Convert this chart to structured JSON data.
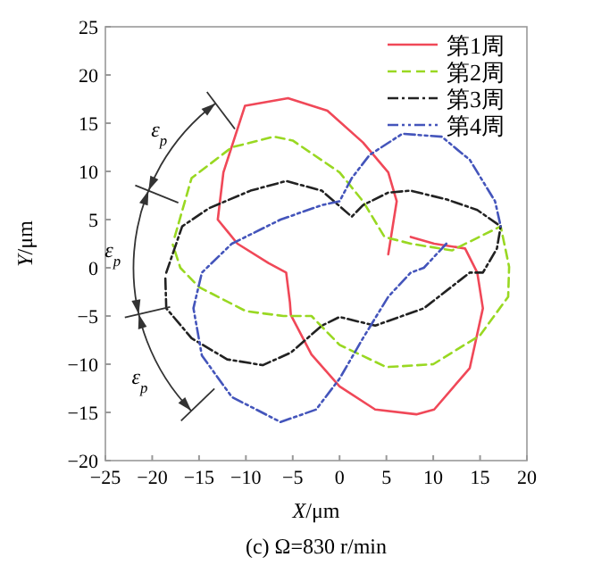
{
  "chart_data": {
    "type": "line",
    "title": "(c) Ω=830 r/min",
    "xlabel": "X/μm",
    "ylabel": "Y/μm",
    "xlim": [
      -25,
      20
    ],
    "ylim": [
      -20,
      25
    ],
    "xticks": [
      -25,
      -20,
      -15,
      -10,
      -5,
      0,
      5,
      10,
      15,
      20
    ],
    "yticks": [
      -20,
      -15,
      -10,
      -5,
      0,
      5,
      10,
      15,
      20,
      25
    ],
    "legend": "top right",
    "grid": false,
    "annotations": [
      "ε$_{p}$",
      "ε$_{p}$",
      "ε$_{p}$"
    ],
    "series": [
      {
        "name": "第1周",
        "color": "#f04858",
        "line_style": "solid",
        "x": [
          5.2,
          6.1,
          5.2,
          2.5,
          -1.3,
          -5.5,
          -10.1,
          -12.4,
          -13,
          -10.9,
          -7.6,
          -5.7,
          -5.3,
          -5.2,
          -3,
          0,
          3.8,
          8.2,
          10.1,
          13.9,
          15.3,
          14.7,
          13.4,
          10.1,
          7.6
        ],
        "values": [
          1.4,
          6.9,
          9.9,
          13,
          16.3,
          17.6,
          16.8,
          9.9,
          5,
          2.5,
          0.5,
          -0.5,
          -3.6,
          -4.9,
          -9,
          -12.3,
          -14.7,
          -15.2,
          -14.7,
          -10.4,
          -4.2,
          -0.5,
          2,
          2.5,
          3.2
        ]
      },
      {
        "name": "第2周",
        "color": "#99d822",
        "line_style": "dashed",
        "x": [
          -17.6,
          -15.8,
          -11.5,
          -7,
          -5,
          0,
          2.5,
          4.8,
          7.6,
          12,
          17.2,
          18.1,
          18,
          15,
          10,
          5,
          0,
          -3,
          -6,
          -10,
          -15,
          -17,
          -17.8
        ],
        "values": [
          3.2,
          9.3,
          12.5,
          13.6,
          13.2,
          9.9,
          6.9,
          3.2,
          2.5,
          1.8,
          4.3,
          0.1,
          -3,
          -7,
          -10,
          -10.3,
          -8,
          -5,
          -5,
          -4.5,
          -2,
          0,
          2.4
        ]
      },
      {
        "name": "第3周",
        "color": "#222222",
        "line_style": "dashdot",
        "x": [
          -18.5,
          -16.8,
          -13.9,
          -9.5,
          -5.7,
          -1.9,
          1.3,
          2.5,
          5.2,
          7.6,
          11.4,
          14.7,
          17.2,
          16.8,
          15.3,
          13.9,
          9,
          3.8,
          0,
          -1.9,
          -5.2,
          -8.2,
          -12,
          -15.8,
          -18.5,
          -18.6
        ],
        "values": [
          -0.5,
          4.3,
          6.2,
          8,
          9,
          8,
          5.3,
          6.5,
          7.8,
          8,
          7.1,
          6,
          4.3,
          2,
          -0.5,
          -0.5,
          -4.2,
          -6,
          -5.1,
          -6,
          -8.8,
          -10.1,
          -9.5,
          -7.3,
          -4.2,
          -1
        ]
      },
      {
        "name": "第4周",
        "color": "#4455bb",
        "line_style": "dashdotdot",
        "x": [
          11.4,
          9,
          7.6,
          5.2,
          2.5,
          0,
          -2.5,
          -6.3,
          -11.5,
          -14.7,
          -15.6,
          -14.7,
          -11.5,
          -6.3,
          -1.9,
          0,
          1.3,
          3.2,
          6.7,
          10.9,
          13.9,
          16.6,
          17.2
        ],
        "values": [
          2.5,
          0,
          -0.5,
          -3,
          -7.3,
          -11.5,
          -14.7,
          -16,
          -13.4,
          -9.1,
          -4.2,
          -0.5,
          2.5,
          5,
          6.5,
          6.9,
          9.3,
          11.7,
          13.9,
          13.6,
          11.2,
          6.9,
          4.3
        ]
      }
    ]
  }
}
